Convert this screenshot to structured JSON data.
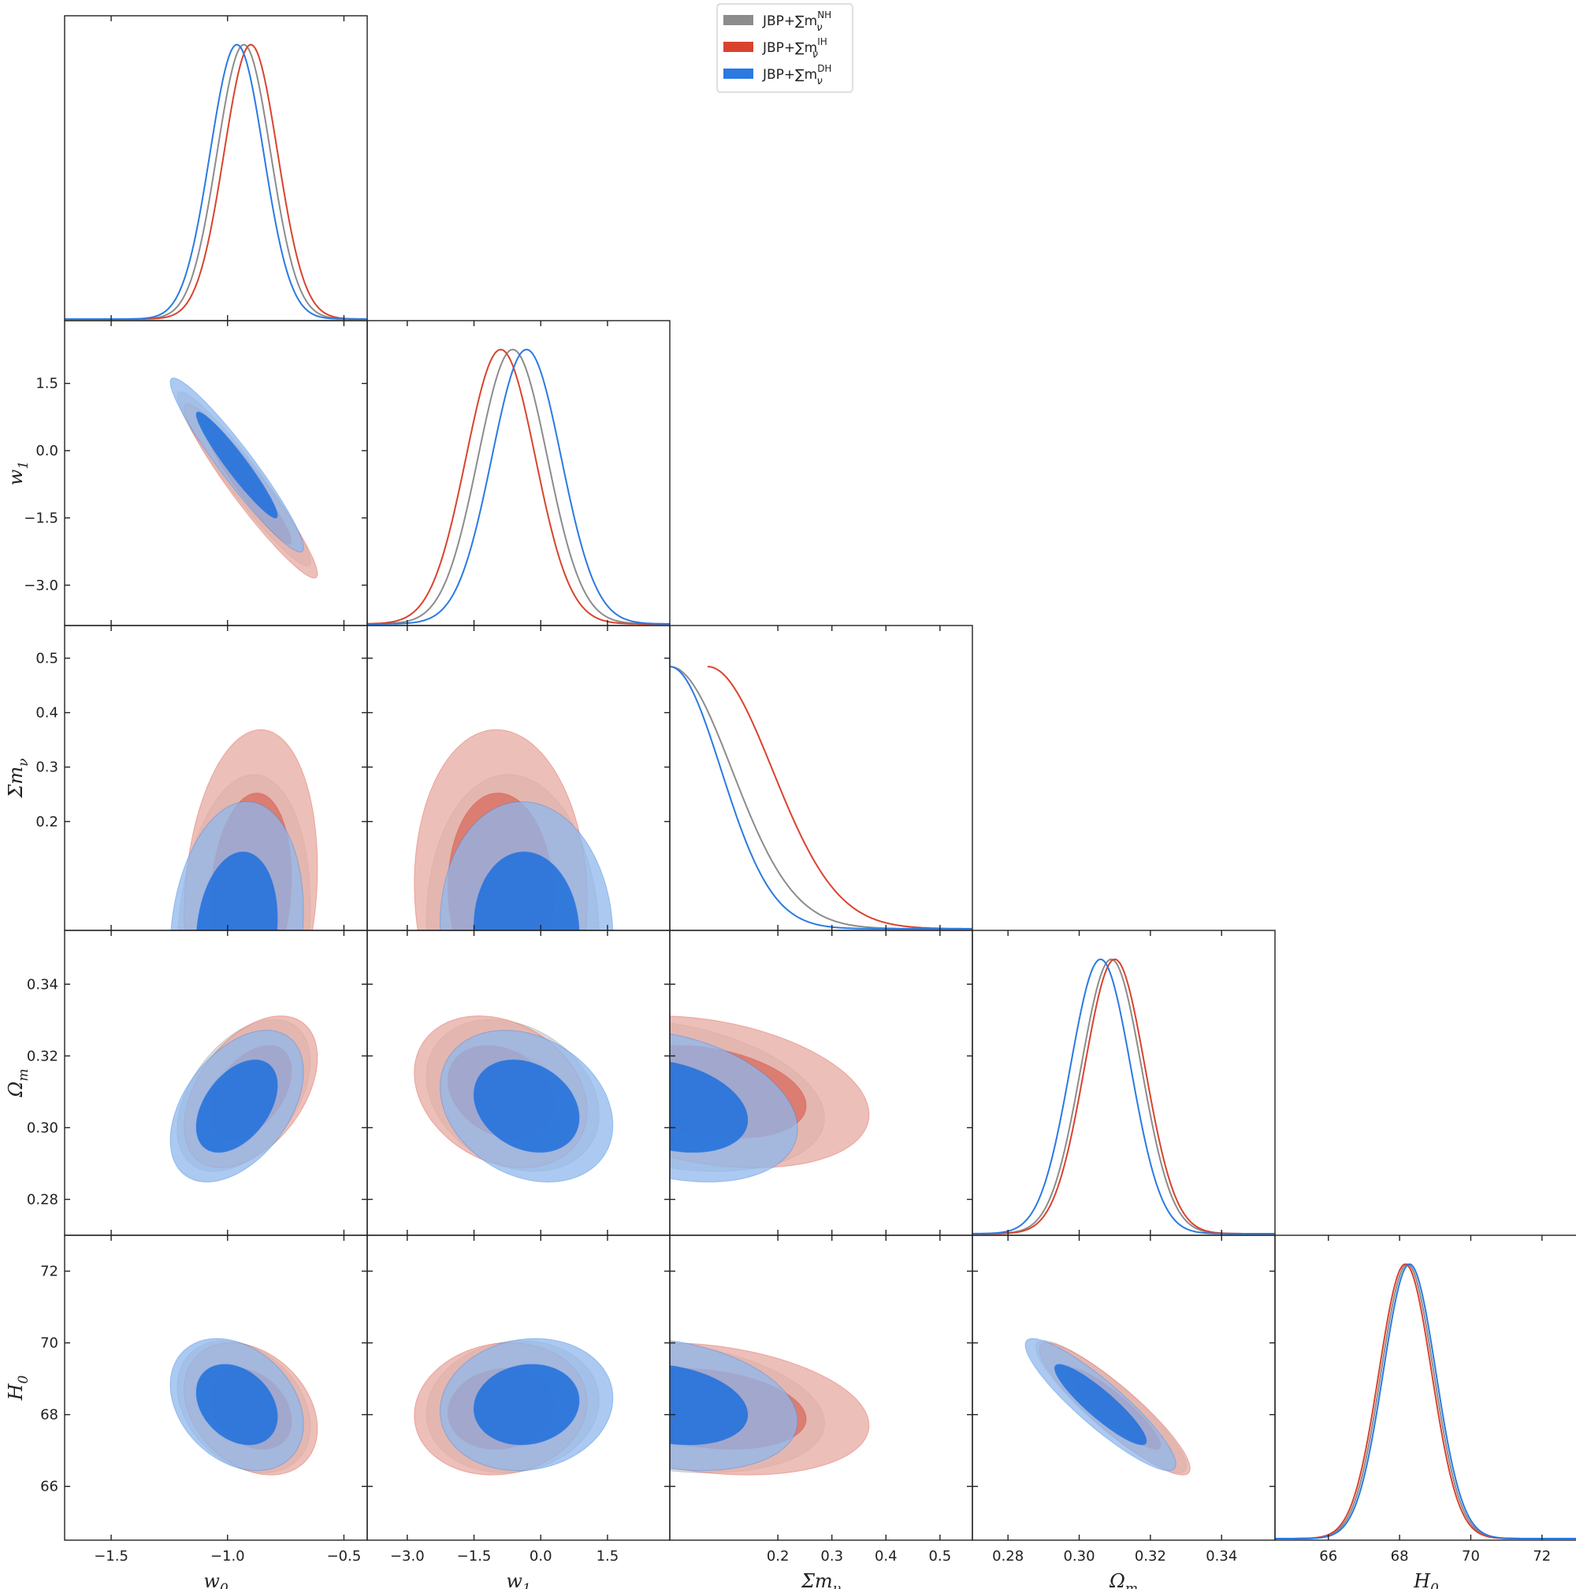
{
  "chart_data": {
    "type": "corner",
    "title": "",
    "parameters": [
      {
        "key": "w0",
        "label": "w",
        "sub": "0",
        "range": [
          -1.7,
          -0.4
        ],
        "ticks": [
          -1.5,
          -1.0,
          -0.5
        ],
        "tick_labels": [
          "−1.5",
          "−1.0",
          "−0.5"
        ]
      },
      {
        "key": "w1",
        "label": "w",
        "sub": "1",
        "range": [
          -3.9,
          2.9
        ],
        "ticks": [
          -3.0,
          -1.5,
          0.0,
          1.5
        ],
        "tick_labels": [
          "−3.0",
          "−1.5",
          "0.0",
          "1.5"
        ]
      },
      {
        "key": "mnu",
        "label": "Σm",
        "sub": "ν",
        "range": [
          0.0,
          0.56
        ],
        "ticks": [
          0.2,
          0.3,
          0.4,
          0.5
        ],
        "tick_labels": [
          "0.2",
          "0.3",
          "0.4",
          "0.5"
        ]
      },
      {
        "key": "om",
        "label": "Ω",
        "sub": "m",
        "range": [
          0.27,
          0.355
        ],
        "ticks": [
          0.28,
          0.3,
          0.32,
          0.34
        ],
        "tick_labels": [
          "0.28",
          "0.30",
          "0.32",
          "0.34"
        ]
      },
      {
        "key": "h0",
        "label": "H",
        "sub": "0",
        "range": [
          64.5,
          73.0
        ],
        "ticks": [
          66,
          68,
          70,
          72
        ],
        "tick_labels": [
          "66",
          "68",
          "70",
          "72"
        ]
      }
    ],
    "legend": {
      "position": "top-center",
      "entries": [
        {
          "series": "NH",
          "text": "JBP+∑m",
          "sub": "ν",
          "sup": "NH"
        },
        {
          "series": "IH",
          "text": "JBP+∑m",
          "sub": "ν",
          "sup": "IH"
        },
        {
          "series": "DH",
          "text": "JBP+∑m",
          "sub": "ν",
          "sup": "DH"
        }
      ]
    },
    "series": [
      {
        "name": "NH",
        "line_color": "#8c8c8c",
        "fill_outer": "#cfcfcf",
        "fill_inner": "#a8a8a8",
        "means": {
          "w0": -0.93,
          "w1": -0.63,
          "mnu": 0.0,
          "om": 0.309,
          "h0": 68.22
        },
        "sigmas": {
          "w0": 0.115,
          "w1": 0.78,
          "mnu": 0.115,
          "om": 0.0085,
          "h0": 0.74
        }
      },
      {
        "name": "IH",
        "line_color": "#d9432e",
        "fill_outer": "#e7a9a1",
        "fill_inner": "#d97366",
        "means": {
          "w0": -0.9,
          "w1": -0.9,
          "mnu": 0.07,
          "om": 0.31,
          "h0": 68.16
        },
        "sigmas": {
          "w0": 0.115,
          "w1": 0.78,
          "mnu": 0.12,
          "om": 0.0085,
          "h0": 0.74
        }
      },
      {
        "name": "DH",
        "line_color": "#2a7ae2",
        "fill_outer": "#8fb7ec",
        "fill_inner": "#1f6fdc",
        "means": {
          "w0": -0.96,
          "w1": -0.32,
          "mnu": 0.0,
          "om": 0.306,
          "h0": 68.28
        },
        "sigmas": {
          "w0": 0.115,
          "w1": 0.78,
          "mnu": 0.095,
          "om": 0.0085,
          "h0": 0.74
        }
      }
    ],
    "correlations": {
      "w1|w0": -0.95,
      "mnu|w0": 0.15,
      "mnu|w1": -0.05,
      "om|w0": 0.45,
      "om|w1": -0.25,
      "om|mnu": -0.3,
      "h0|w0": -0.3,
      "h0|w1": 0.1,
      "h0|mnu": -0.25,
      "h0|om": -0.9
    },
    "grid": false
  }
}
